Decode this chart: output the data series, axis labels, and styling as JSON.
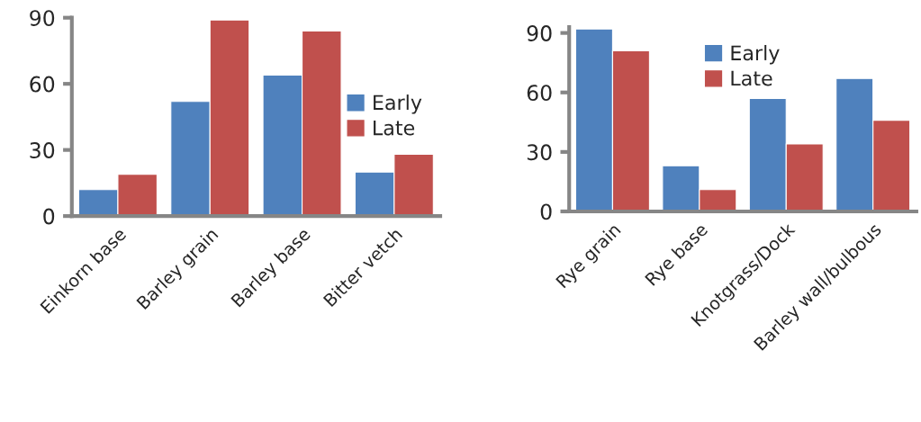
{
  "chart_data": [
    {
      "type": "bar",
      "categories": [
        "Einkorn base",
        "Barley grain",
        "Barley base",
        "Bitter vetch"
      ],
      "series": [
        {
          "name": "Early",
          "color": "#4f81bd",
          "values": [
            12,
            52,
            64,
            20
          ]
        },
        {
          "name": "Late",
          "color": "#c0504d",
          "values": [
            19,
            89,
            84,
            28
          ]
        }
      ],
      "ylim": [
        0,
        90
      ],
      "yticks": [
        0,
        30,
        60,
        90
      ],
      "legend": "right",
      "grid": false
    },
    {
      "type": "bar",
      "categories": [
        "Rye grain",
        "Rye base",
        "Knotgrass/Dock",
        "Barley wall/bulbous"
      ],
      "series": [
        {
          "name": "Early",
          "color": "#4f81bd",
          "values": [
            92,
            23,
            57,
            67
          ]
        },
        {
          "name": "Late",
          "color": "#c0504d",
          "values": [
            81,
            11,
            34,
            46
          ]
        }
      ],
      "ylim": [
        0,
        93
      ],
      "yticks": [
        0,
        30,
        60,
        90
      ],
      "legend": "upper center",
      "grid": false
    }
  ]
}
